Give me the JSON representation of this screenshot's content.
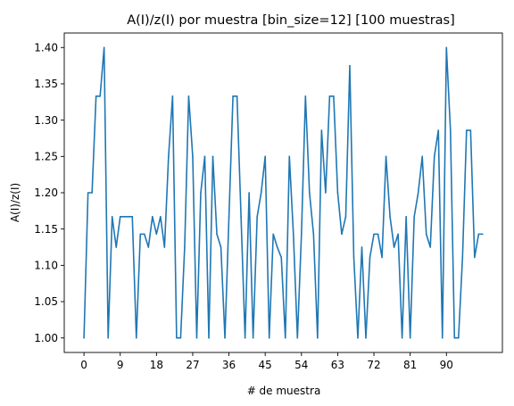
{
  "chart_data": {
    "type": "line",
    "title": "A(I)/z(I) por muestra [bin_size=12] [100 muestras]",
    "xlabel": "# de muestra",
    "ylabel": "A(I)/z(I)",
    "xlim": [
      -4.9,
      103.9
    ],
    "ylim": [
      0.98,
      1.42
    ],
    "x_ticks": [
      0,
      9,
      18,
      27,
      36,
      45,
      54,
      63,
      72,
      81,
      90
    ],
    "x_tick_labels": [
      "0",
      "9",
      "18",
      "27",
      "36",
      "45",
      "54",
      "63",
      "72",
      "81",
      "90"
    ],
    "y_ticks": [
      1.0,
      1.05,
      1.1,
      1.15,
      1.2,
      1.25,
      1.3,
      1.35,
      1.4
    ],
    "y_tick_labels": [
      "1.00",
      "1.05",
      "1.10",
      "1.15",
      "1.20",
      "1.25",
      "1.30",
      "1.35",
      "1.40"
    ],
    "grid": false,
    "series": [
      {
        "color": "#1f77b4",
        "x": [
          0,
          1,
          2,
          3,
          4,
          5,
          6,
          7,
          8,
          9,
          10,
          11,
          12,
          13,
          14,
          15,
          16,
          17,
          18,
          19,
          20,
          21,
          22,
          23,
          24,
          25,
          26,
          27,
          28,
          29,
          30,
          31,
          32,
          33,
          34,
          35,
          36,
          37,
          38,
          39,
          40,
          41,
          42,
          43,
          44,
          45,
          46,
          47,
          48,
          49,
          50,
          51,
          52,
          53,
          54,
          55,
          56,
          57,
          58,
          59,
          60,
          61,
          62,
          63,
          64,
          65,
          66,
          67,
          68,
          69,
          70,
          71,
          72,
          73,
          74,
          75,
          76,
          77,
          78,
          79,
          80,
          81,
          82,
          83,
          84,
          85,
          86,
          87,
          88,
          89,
          90,
          91,
          92,
          93,
          94,
          95,
          96,
          97,
          98,
          99
        ],
        "values": [
          1.0,
          1.2,
          1.2,
          1.333,
          1.333,
          1.4,
          1.0,
          1.167,
          1.125,
          1.167,
          1.167,
          1.167,
          1.167,
          1.0,
          1.143,
          1.143,
          1.125,
          1.167,
          1.143,
          1.167,
          1.125,
          1.25,
          1.333,
          1.0,
          1.0,
          1.125,
          1.333,
          1.25,
          1.0,
          1.2,
          1.25,
          1.0,
          1.25,
          1.143,
          1.125,
          1.0,
          1.167,
          1.333,
          1.333,
          1.167,
          1.0,
          1.2,
          1.0,
          1.167,
          1.2,
          1.25,
          1.0,
          1.143,
          1.125,
          1.111,
          1.0,
          1.25,
          1.143,
          1.0,
          1.143,
          1.333,
          1.2,
          1.143,
          1.0,
          1.286,
          1.2,
          1.333,
          1.333,
          1.2,
          1.143,
          1.167,
          1.375,
          1.111,
          1.0,
          1.125,
          1.0,
          1.111,
          1.143,
          1.143,
          1.111,
          1.25,
          1.167,
          1.125,
          1.143,
          1.0,
          1.167,
          1.0,
          1.167,
          1.2,
          1.25,
          1.143,
          1.125,
          1.25,
          1.286,
          1.0,
          1.4,
          1.286,
          1.0,
          1.0,
          1.111,
          1.286,
          1.286,
          1.111,
          1.143,
          1.143
        ]
      }
    ]
  }
}
